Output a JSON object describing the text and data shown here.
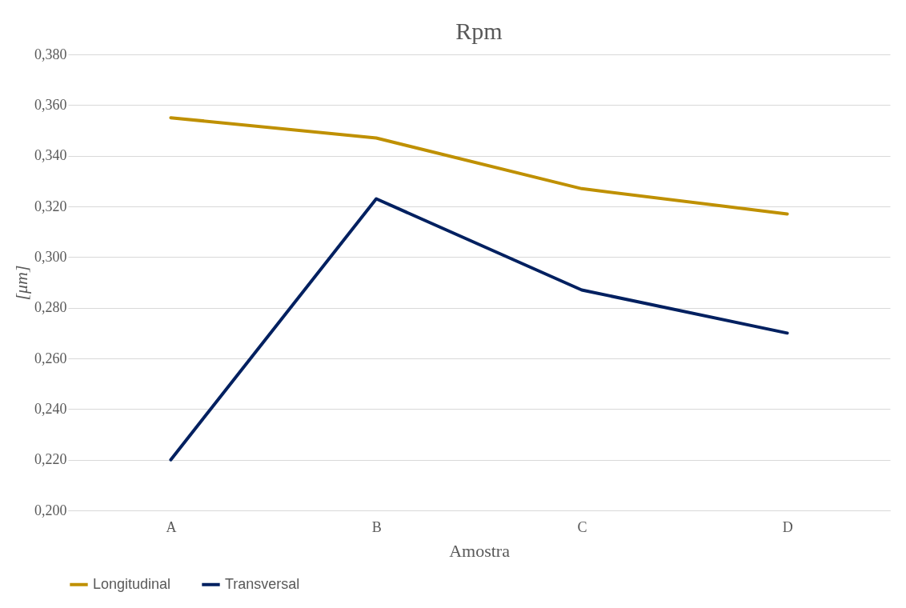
{
  "chart_data": {
    "type": "line",
    "title": "Rpm",
    "xlabel": "Amostra",
    "ylabel": "[μm]",
    "categories": [
      "A",
      "B",
      "C",
      "D"
    ],
    "series": [
      {
        "name": "Longitudinal",
        "color": "#bf9000",
        "values": [
          0.355,
          0.347,
          0.327,
          0.317
        ]
      },
      {
        "name": "Transversal",
        "color": "#002060",
        "values": [
          0.22,
          0.323,
          0.287,
          0.27
        ]
      }
    ],
    "ylim": [
      0.2,
      0.38
    ],
    "yticks": [
      {
        "value": 0.2,
        "label": "0,200"
      },
      {
        "value": 0.22,
        "label": "0,220"
      },
      {
        "value": 0.24,
        "label": "0,240"
      },
      {
        "value": 0.26,
        "label": "0,260"
      },
      {
        "value": 0.28,
        "label": "0,280"
      },
      {
        "value": 0.3,
        "label": "0,300"
      },
      {
        "value": 0.32,
        "label": "0,320"
      },
      {
        "value": 0.34,
        "label": "0,340"
      },
      {
        "value": 0.36,
        "label": "0,360"
      },
      {
        "value": 0.38,
        "label": "0,380"
      }
    ],
    "grid": "y",
    "legend": "bottom",
    "marker": "none",
    "line_style": "solid"
  }
}
